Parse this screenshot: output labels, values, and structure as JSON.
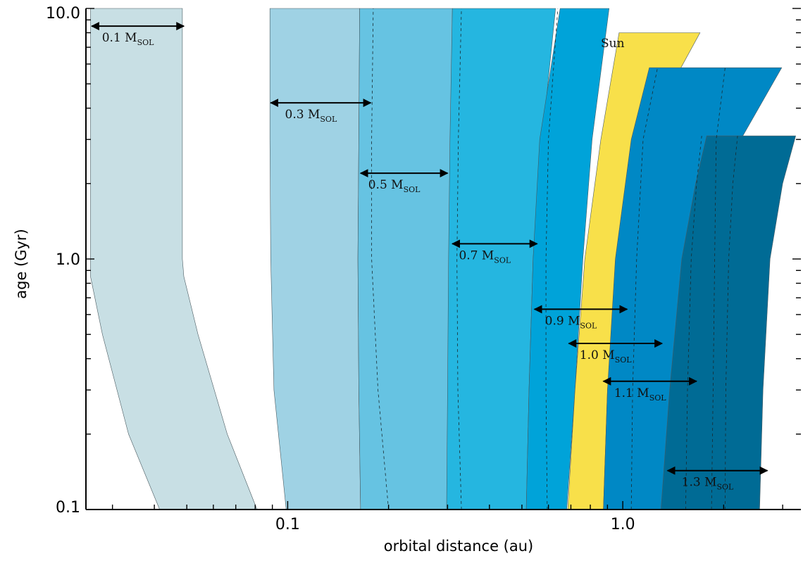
{
  "chart_data": {
    "type": "area",
    "title": "",
    "xlabel": "orbital distance (au)",
    "ylabel": "age (Gyr)",
    "xscale": "log",
    "yscale": "log",
    "xlim": [
      0.025,
      3.4
    ],
    "ylim": [
      0.1,
      10.0
    ],
    "x_tick_labels": [
      {
        "value": 0.1,
        "label": "0.1"
      },
      {
        "value": 1.0,
        "label": "1.0"
      }
    ],
    "y_tick_labels": [
      {
        "value": 0.1,
        "label": "0.1"
      },
      {
        "value": 1.0,
        "label": "1.0"
      },
      {
        "value": 10.0,
        "label": "10.0"
      }
    ],
    "unit_subscript": "SOL",
    "series": [
      {
        "label": "0.1 M",
        "color": "#c8dfe4",
        "age": [
          0.1,
          0.2,
          0.5,
          0.85,
          1.0,
          10.0
        ],
        "inner_au": [
          0.0415,
          0.0335,
          0.028,
          0.0258,
          0.0258,
          0.0258
        ],
        "outer_au": [
          0.081,
          0.066,
          0.054,
          0.049,
          0.0485,
          0.0485
        ],
        "arrow": {
          "age": 8.5,
          "from_au": 0.026,
          "to_au": 0.049
        }
      },
      {
        "label": "0.3 M",
        "color": "#9fd2e4",
        "age": [
          0.1,
          0.3,
          1.0,
          3.0,
          10.0
        ],
        "inner_au": [
          0.099,
          0.091,
          0.089,
          0.0885,
          0.0885
        ],
        "outer_au": [
          0.165,
          0.163,
          0.162,
          0.163,
          0.164
        ],
        "arrow": {
          "age": 4.2,
          "from_au": 0.089,
          "to_au": 0.177
        }
      },
      {
        "label": "0.5 M",
        "color": "#66c3e2",
        "age": [
          0.1,
          0.3,
          1.0,
          3.0,
          10.0
        ],
        "inner_au": [
          0.165,
          0.163,
          0.162,
          0.163,
          0.164
        ],
        "outer_au": [
          0.3,
          0.302,
          0.305,
          0.307,
          0.31
        ],
        "arrow": {
          "age": 2.2,
          "from_au": 0.165,
          "to_au": 0.3
        }
      },
      {
        "label": "0.7 M",
        "color": "#25b6e0",
        "age": [
          0.1,
          0.3,
          1.0,
          3.0,
          10.0
        ],
        "inner_au": [
          0.298,
          0.3,
          0.302,
          0.305,
          0.31
        ],
        "outer_au": [
          0.515,
          0.525,
          0.54,
          0.575,
          0.63
        ],
        "arrow": {
          "age": 1.15,
          "from_au": 0.31,
          "to_au": 0.555
        }
      },
      {
        "label": "0.9 M",
        "color": "#00a3d9",
        "age": [
          0.1,
          0.3,
          1.0,
          3.0,
          10.0
        ],
        "inner_au": [
          0.515,
          0.525,
          0.54,
          0.565,
          0.65
        ],
        "outer_au": [
          0.68,
          0.72,
          0.76,
          0.81,
          0.91
        ],
        "arrow": {
          "age": 0.63,
          "from_au": 0.545,
          "to_au": 1.03
        }
      },
      {
        "label": "1.0 M",
        "color": "#f8e04a",
        "age": [
          0.1,
          0.3,
          1.0,
          3.0,
          8.0
        ],
        "inner_au": [
          0.685,
          0.72,
          0.77,
          0.86,
          0.975
        ],
        "outer_au": [
          0.875,
          0.9,
          0.97,
          1.14,
          1.7
        ],
        "arrow": {
          "age": 0.46,
          "from_au": 0.69,
          "to_au": 1.31
        }
      },
      {
        "label": "Sun",
        "color": "#f8e04a"
      },
      {
        "label": "1.1 M",
        "color": "#0088c5",
        "age": [
          0.1,
          0.3,
          1.0,
          3.0,
          5.8
        ],
        "inner_au": [
          0.875,
          0.9,
          0.95,
          1.06,
          1.2
        ],
        "outer_au": [
          1.33,
          1.48,
          1.72,
          2.25,
          2.98
        ],
        "arrow": {
          "age": 0.325,
          "from_au": 0.875,
          "to_au": 1.66
        }
      },
      {
        "label": "1.3 M",
        "color": "#006b95",
        "age": [
          0.1,
          0.3,
          1.0,
          2.0,
          3.1
        ],
        "inner_au": [
          1.3,
          1.38,
          1.5,
          1.65,
          1.78
        ],
        "outer_au": [
          2.56,
          2.62,
          2.75,
          3.0,
          3.28
        ],
        "arrow": {
          "age": 0.143,
          "from_au": 1.36,
          "to_au": 2.7
        }
      }
    ],
    "dashed_lines": [
      {
        "band": "0.5 M",
        "age": [
          0.1,
          0.3,
          1.0,
          3.0,
          10.0
        ],
        "au": [
          0.2,
          0.186,
          0.178,
          0.178,
          0.18
        ]
      },
      {
        "band": "0.7 M",
        "age": [
          0.1,
          0.3,
          1.0,
          3.0,
          10.0
        ],
        "au": [
          0.33,
          0.322,
          0.32,
          0.323,
          0.33
        ]
      },
      {
        "band": "0.9 M",
        "age": [
          0.1,
          0.3,
          1.0,
          3.0,
          10.0
        ],
        "au": [
          0.595,
          0.59,
          0.59,
          0.6,
          0.64
        ]
      },
      {
        "band": "1.1 M",
        "age": [
          0.1,
          0.3,
          1.0,
          3.0,
          5.8
        ],
        "au": [
          1.06,
          1.07,
          1.1,
          1.15,
          1.27
        ]
      },
      {
        "band": "1.1 M",
        "age": [
          0.1,
          0.3,
          1.0,
          3.0,
          5.8
        ],
        "au": [
          1.84,
          1.86,
          1.88,
          1.9,
          2.02
        ]
      },
      {
        "band": "1.3 M",
        "age": [
          0.1,
          0.3,
          1.0,
          2.0,
          3.1
        ],
        "au": [
          1.54,
          1.56,
          1.6,
          1.66,
          1.72
        ]
      },
      {
        "band": "1.3 M",
        "age": [
          0.1,
          0.3,
          1.0,
          2.0,
          3.1
        ],
        "au": [
          2.02,
          2.03,
          2.07,
          2.13,
          2.2
        ]
      }
    ]
  }
}
